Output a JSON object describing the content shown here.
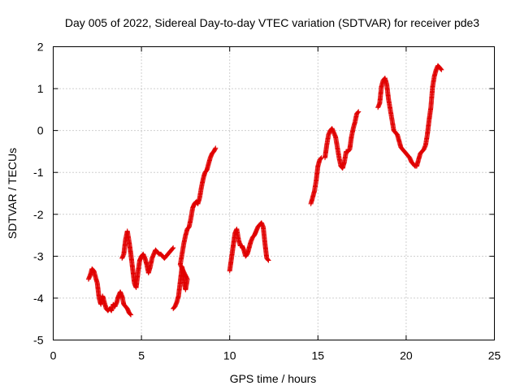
{
  "chart_data": {
    "type": "scatter",
    "title": "Day 005 of 2022, Sidereal Day-to-day VTEC variation (SDTVAR) for receiver pde3",
    "xlabel": "GPS time / hours",
    "ylabel": "SDTVAR / TECUs",
    "xlim": [
      0,
      25
    ],
    "ylim": [
      -5,
      2
    ],
    "xticks": [
      "0",
      "5",
      "10",
      "15",
      "20",
      "25"
    ],
    "yticks": [
      "2",
      "1",
      "0",
      "-1",
      "-2",
      "-3",
      "-4",
      "-5"
    ],
    "grid": true,
    "marker": "plus",
    "color": "#e00000",
    "series": [
      {
        "name": "SDTVAR",
        "segments": [
          [
            [
              2.0,
              -3.55
            ],
            [
              2.1,
              -3.45
            ],
            [
              2.2,
              -3.3
            ],
            [
              2.3,
              -3.35
            ],
            [
              2.4,
              -3.5
            ],
            [
              2.5,
              -3.65
            ],
            [
              2.6,
              -4.0
            ],
            [
              2.7,
              -4.15
            ],
            [
              2.8,
              -3.95
            ],
            [
              2.9,
              -4.1
            ],
            [
              3.0,
              -4.25
            ],
            [
              3.1,
              -4.3
            ],
            [
              3.2,
              -4.25
            ],
            [
              3.3,
              -4.3
            ],
            [
              3.4,
              -4.15
            ],
            [
              3.5,
              -4.2
            ],
            [
              3.6,
              -4.1
            ],
            [
              3.7,
              -3.95
            ],
            [
              3.8,
              -3.85
            ],
            [
              3.9,
              -3.95
            ],
            [
              4.0,
              -4.15
            ],
            [
              4.1,
              -4.2
            ],
            [
              4.2,
              -4.25
            ],
            [
              4.3,
              -4.35
            ],
            [
              4.4,
              -4.4
            ]
          ],
          [
            [
              3.9,
              -3.05
            ],
            [
              4.0,
              -2.95
            ],
            [
              4.1,
              -2.6
            ],
            [
              4.2,
              -2.4
            ],
            [
              4.3,
              -2.65
            ],
            [
              4.4,
              -2.95
            ],
            [
              4.5,
              -3.3
            ],
            [
              4.6,
              -3.65
            ],
            [
              4.7,
              -3.75
            ],
            [
              4.8,
              -3.4
            ],
            [
              4.9,
              -3.1
            ],
            [
              5.0,
              -3.0
            ],
            [
              5.1,
              -2.95
            ],
            [
              5.2,
              -3.05
            ],
            [
              5.3,
              -3.2
            ],
            [
              5.4,
              -3.4
            ],
            [
              5.5,
              -3.25
            ],
            [
              5.6,
              -3.05
            ],
            [
              5.7,
              -2.95
            ],
            [
              5.8,
              -2.85
            ],
            [
              5.9,
              -2.9
            ],
            [
              6.0,
              -2.95
            ],
            [
              6.1,
              -2.95
            ],
            [
              6.2,
              -3.0
            ],
            [
              6.3,
              -3.05
            ],
            [
              6.4,
              -3.0
            ],
            [
              6.5,
              -2.95
            ],
            [
              6.6,
              -2.9
            ],
            [
              6.7,
              -2.85
            ],
            [
              6.8,
              -2.8
            ]
          ],
          [
            [
              6.8,
              -4.25
            ],
            [
              6.9,
              -4.2
            ],
            [
              7.0,
              -4.1
            ],
            [
              7.1,
              -3.95
            ],
            [
              7.2,
              -3.6
            ],
            [
              7.3,
              -3.25
            ],
            [
              7.4,
              -3.6
            ],
            [
              7.5,
              -3.8
            ],
            [
              7.6,
              -3.55
            ],
            [
              7.2,
              -3.2
            ],
            [
              7.3,
              -2.95
            ],
            [
              7.4,
              -2.7
            ],
            [
              7.5,
              -2.5
            ],
            [
              7.6,
              -2.35
            ],
            [
              7.7,
              -2.3
            ],
            [
              7.8,
              -2.1
            ],
            [
              7.9,
              -1.85
            ],
            [
              8.0,
              -1.75
            ],
            [
              8.1,
              -1.7
            ],
            [
              8.2,
              -1.75
            ],
            [
              8.3,
              -1.6
            ],
            [
              8.4,
              -1.35
            ],
            [
              8.5,
              -1.15
            ],
            [
              8.6,
              -1.0
            ],
            [
              8.7,
              -0.95
            ],
            [
              8.8,
              -0.8
            ],
            [
              8.9,
              -0.65
            ],
            [
              9.0,
              -0.55
            ],
            [
              9.1,
              -0.5
            ],
            [
              9.2,
              -0.42
            ]
          ],
          [
            [
              10.0,
              -3.35
            ],
            [
              10.1,
              -3.05
            ],
            [
              10.2,
              -2.75
            ],
            [
              10.3,
              -2.45
            ],
            [
              10.4,
              -2.35
            ],
            [
              10.5,
              -2.6
            ],
            [
              10.6,
              -2.75
            ],
            [
              10.7,
              -2.75
            ],
            [
              10.8,
              -2.85
            ],
            [
              10.9,
              -3.0
            ],
            [
              11.0,
              -2.95
            ],
            [
              11.1,
              -2.8
            ],
            [
              11.2,
              -2.65
            ],
            [
              11.3,
              -2.55
            ],
            [
              11.4,
              -2.5
            ],
            [
              11.5,
              -2.4
            ],
            [
              11.6,
              -2.3
            ],
            [
              11.7,
              -2.25
            ],
            [
              11.8,
              -2.2
            ],
            [
              11.9,
              -2.3
            ],
            [
              12.0,
              -2.7
            ],
            [
              12.1,
              -3.05
            ],
            [
              12.2,
              -3.1
            ]
          ],
          [
            [
              14.6,
              -1.75
            ],
            [
              14.7,
              -1.6
            ],
            [
              14.8,
              -1.45
            ],
            [
              14.9,
              -1.2
            ],
            [
              15.0,
              -0.85
            ],
            [
              15.1,
              -0.7
            ],
            [
              15.2,
              -0.65
            ]
          ],
          [
            [
              15.4,
              -0.65
            ],
            [
              15.5,
              -0.35
            ],
            [
              15.6,
              -0.1
            ],
            [
              15.7,
              0.0
            ],
            [
              15.8,
              0.05
            ],
            [
              15.9,
              -0.05
            ],
            [
              16.0,
              -0.15
            ],
            [
              16.1,
              -0.4
            ],
            [
              16.2,
              -0.65
            ],
            [
              16.3,
              -0.85
            ],
            [
              16.4,
              -0.9
            ],
            [
              16.5,
              -0.75
            ],
            [
              16.6,
              -0.5
            ],
            [
              16.7,
              -0.5
            ],
            [
              16.8,
              -0.45
            ],
            [
              16.9,
              -0.15
            ],
            [
              17.0,
              0.05
            ],
            [
              17.1,
              0.2
            ],
            [
              17.2,
              0.4
            ],
            [
              17.3,
              0.45
            ]
          ],
          [
            [
              18.4,
              0.55
            ],
            [
              18.5,
              0.65
            ],
            [
              18.6,
              1.05
            ],
            [
              18.7,
              1.2
            ],
            [
              18.8,
              1.25
            ],
            [
              18.9,
              1.1
            ],
            [
              19.0,
              0.75
            ],
            [
              19.1,
              0.5
            ],
            [
              19.2,
              0.25
            ],
            [
              19.3,
              0.0
            ],
            [
              19.4,
              -0.05
            ],
            [
              19.5,
              -0.1
            ],
            [
              19.6,
              -0.25
            ],
            [
              19.7,
              -0.4
            ],
            [
              19.8,
              -0.45
            ],
            [
              19.9,
              -0.5
            ],
            [
              20.0,
              -0.55
            ],
            [
              20.1,
              -0.6
            ],
            [
              20.2,
              -0.65
            ],
            [
              20.3,
              -0.75
            ],
            [
              20.4,
              -0.8
            ],
            [
              20.5,
              -0.85
            ],
            [
              20.6,
              -0.85
            ],
            [
              20.7,
              -0.7
            ],
            [
              20.8,
              -0.55
            ],
            [
              20.9,
              -0.5
            ],
            [
              21.0,
              -0.45
            ],
            [
              21.1,
              -0.35
            ],
            [
              21.2,
              -0.1
            ],
            [
              21.3,
              0.25
            ],
            [
              21.4,
              0.55
            ],
            [
              21.5,
              1.05
            ],
            [
              21.6,
              1.3
            ],
            [
              21.7,
              1.45
            ],
            [
              21.8,
              1.55
            ],
            [
              21.9,
              1.5
            ],
            [
              22.0,
              1.45
            ]
          ]
        ]
      }
    ]
  }
}
